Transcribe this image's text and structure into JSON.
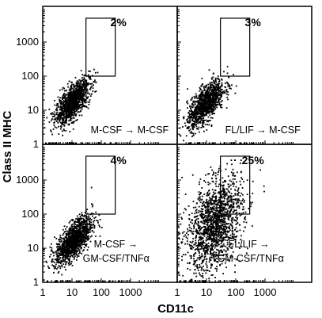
{
  "chart_data": {
    "type": "scatter",
    "xlabel": "CD11c",
    "ylabel": "Class II MHC",
    "x_scale": "log",
    "y_scale": "log",
    "xlim": [
      1,
      10000
    ],
    "ylim": [
      1,
      10000
    ],
    "x_ticks": [
      "1",
      "10",
      "100",
      "1000"
    ],
    "y_ticks": [
      "1",
      "10",
      "100",
      "1000"
    ],
    "gate": {
      "x_range": [
        30,
        300
      ],
      "y_range": [
        100,
        5000
      ]
    },
    "panels": [
      {
        "position": "top-left",
        "percent": "2%",
        "label_from": "M-CSF",
        "label_to": "M-CSF",
        "population": {
          "center_x": 10,
          "center_y": 18,
          "spread_log": 0.28,
          "n_points": 1200
        }
      },
      {
        "position": "top-right",
        "percent": "3%",
        "label_from": "FL/LIF",
        "label_to": "M-CSF",
        "population": {
          "center_x": 9,
          "center_y": 16,
          "spread_log": 0.3,
          "n_points": 1100
        }
      },
      {
        "position": "bottom-left",
        "percent": "4%",
        "label_from": "M-CSF",
        "label_to": "GM-CSF/TNFα",
        "population": {
          "center_x": 11,
          "center_y": 18,
          "spread_log": 0.3,
          "n_points": 1300
        }
      },
      {
        "position": "bottom-right",
        "percent": "25%",
        "label_from": "FL/LIF",
        "label_to": "GM-CSF/TNFα",
        "population": {
          "center_x": 18,
          "center_y": 50,
          "spread_log": 0.45,
          "n_points": 1600
        }
      }
    ]
  }
}
